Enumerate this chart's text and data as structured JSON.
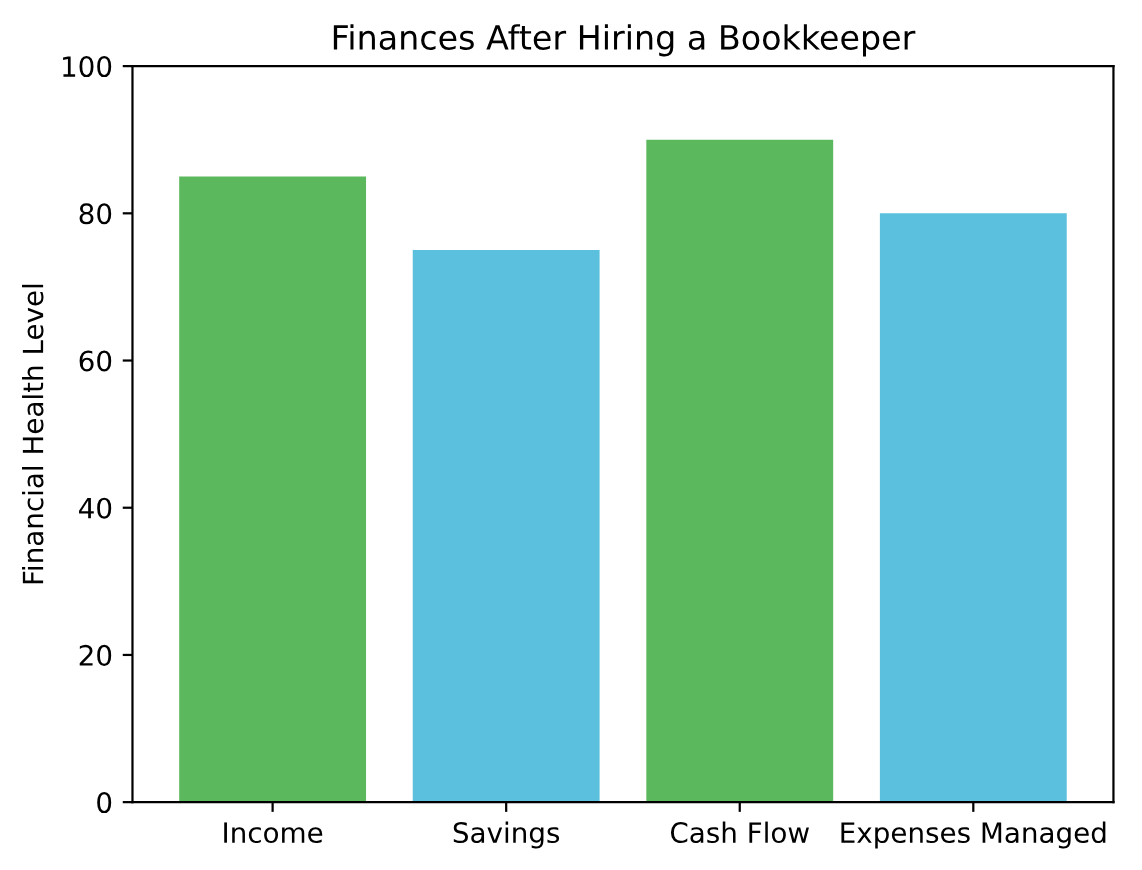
{
  "chart_data": {
    "type": "bar",
    "title": "Finances After Hiring a Bookkeeper",
    "ylabel": "Financial Health Level",
    "categories": [
      "Income",
      "Savings",
      "Cash Flow",
      "Expenses Managed"
    ],
    "values": [
      85,
      75,
      90,
      80
    ],
    "colors": [
      "#5cb85c",
      "#5bc0de",
      "#5cb85c",
      "#5bc0de"
    ],
    "ylim": [
      0,
      100
    ],
    "yticks": [
      0,
      20,
      40,
      60,
      80,
      100
    ],
    "grid": false
  }
}
